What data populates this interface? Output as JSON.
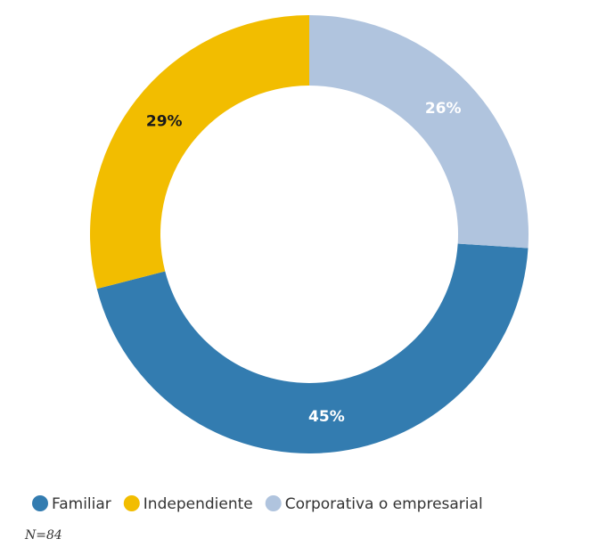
{
  "chart_data": {
    "type": "donut",
    "series": [
      {
        "name": "Familiar",
        "color": "#337cb0",
        "values": [
          45
        ],
        "value_labels": [
          "45%"
        ],
        "label_color": "#ffffff"
      },
      {
        "name": "Independiente",
        "color": "#f2bd00",
        "values": [
          29
        ],
        "value_labels": [
          "29%"
        ],
        "label_color": "#1a1a1a"
      },
      {
        "name": "Corporativa o empresarial",
        "color": "#b0c4de",
        "values": [
          26
        ],
        "value_labels": [
          "26%"
        ],
        "label_color": "#ffffff"
      }
    ],
    "legend": "bottom",
    "note": "N=84"
  }
}
